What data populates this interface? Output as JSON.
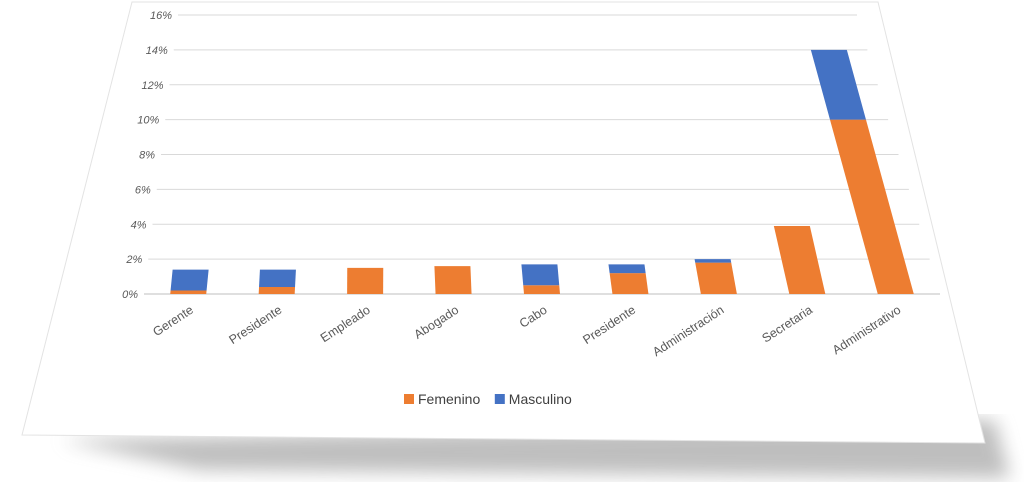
{
  "chart_data": {
    "type": "bar",
    "stacked": true,
    "categories": [
      "Gerente",
      "Presidente",
      "Empleado",
      "Abogado",
      "Cabo",
      "Presidente",
      "Administración",
      "Secretaria",
      "Administrativo"
    ],
    "series": [
      {
        "name": "Femenino",
        "color": "#ed7d31",
        "values": [
          0.2,
          0.4,
          1.5,
          1.6,
          0.5,
          1.2,
          1.8,
          3.9,
          10.0
        ]
      },
      {
        "name": "Masculino",
        "color": "#4472c4",
        "values": [
          1.2,
          1.0,
          0.0,
          0.0,
          1.2,
          0.5,
          0.2,
          0.0,
          4.0
        ]
      }
    ],
    "y_ticks": [
      "0%",
      "2%",
      "4%",
      "6%",
      "8%",
      "10%",
      "12%",
      "14%",
      "16%"
    ],
    "ylim": [
      0,
      16
    ],
    "grid": true,
    "legend_position": "bottom"
  }
}
